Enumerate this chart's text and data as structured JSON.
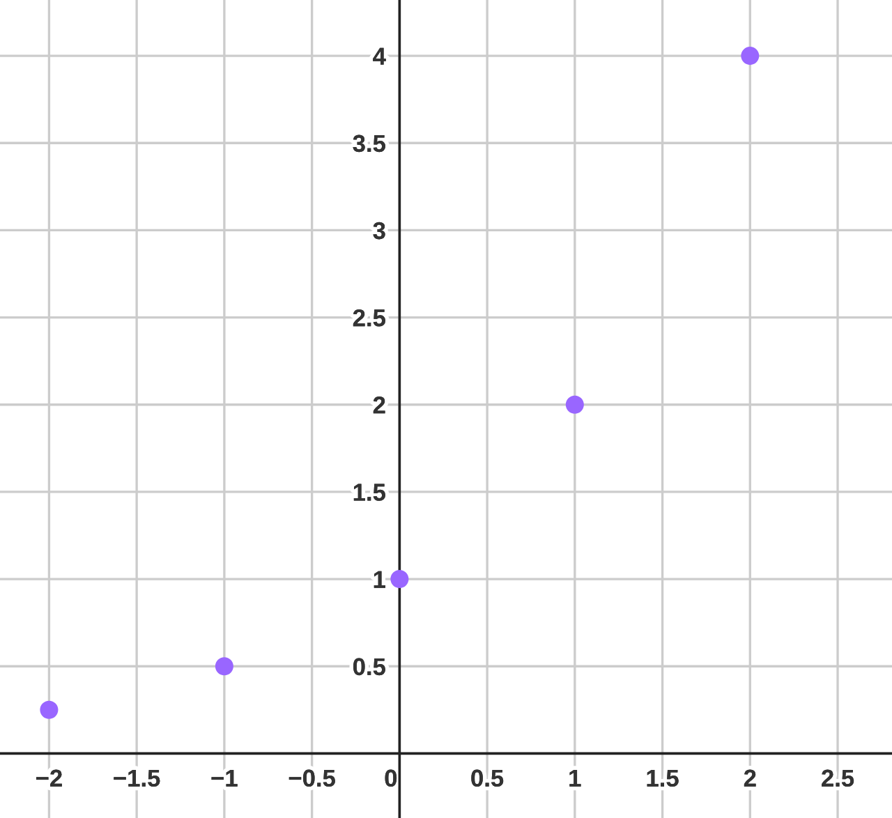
{
  "chart_data": {
    "type": "scatter",
    "x": [
      -2,
      -1,
      0,
      1,
      2
    ],
    "values": [
      0.25,
      0.5,
      1,
      2,
      4
    ],
    "color": "#9966ff",
    "marker": "circle",
    "xlim": [
      -2.28,
      2.81
    ],
    "ylim": [
      -0.37,
      4.32
    ],
    "xticks": [
      {
        "value": -2,
        "label": "−2"
      },
      {
        "value": -1.5,
        "label": "−1.5"
      },
      {
        "value": -1,
        "label": "−1"
      },
      {
        "value": -0.5,
        "label": "−0.5"
      },
      0,
      0.5,
      1,
      1.5,
      2,
      2.5
    ],
    "yticks": [
      0.5,
      1,
      1.5,
      2,
      2.5,
      3,
      3.5,
      4
    ],
    "grid": true
  }
}
